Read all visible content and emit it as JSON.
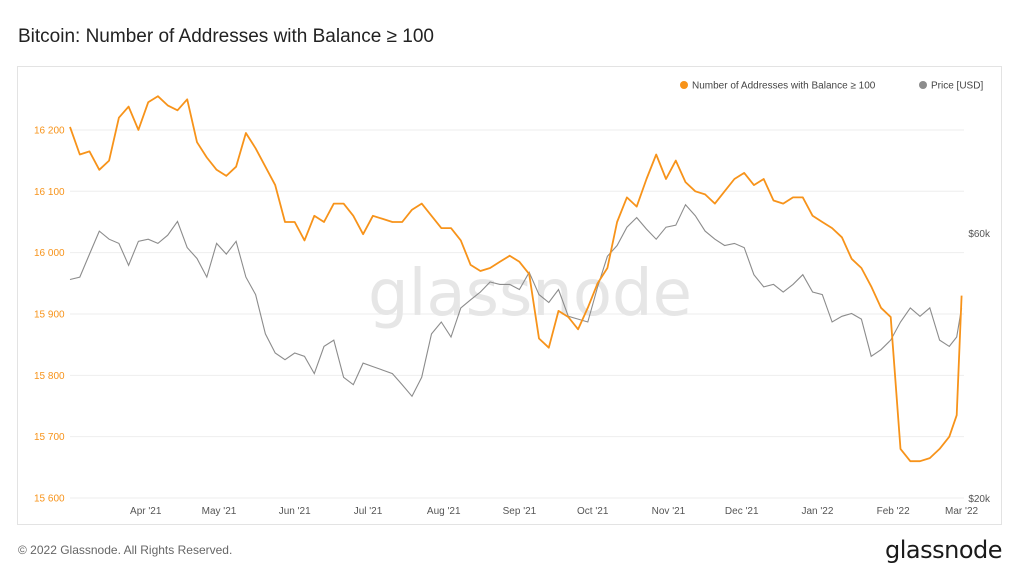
{
  "title": "Bitcoin: Number of Addresses with Balance ≥ 100",
  "watermark": "glassnode",
  "footer": {
    "copyright": "© 2022 Glassnode. All Rights Reserved.",
    "logo": "glassnode"
  },
  "colors": {
    "addresses": "#f7931a",
    "price": "#8c8c8c",
    "grid": "#eeeeee",
    "watermark": "#e6e6e6"
  },
  "chart_data": {
    "type": "line",
    "title": "Bitcoin: Number of Addresses with Balance ≥ 100",
    "x_ticks": [
      "Apr '21",
      "May '21",
      "Jun '21",
      "Jul '21",
      "Aug '21",
      "Sep '21",
      "Oct '21",
      "Nov '21",
      "Dec '21",
      "Jan '22",
      "Feb '22",
      "Mar '22"
    ],
    "y_left": {
      "range": [
        15600,
        16270
      ],
      "ticks": [
        15600,
        15700,
        15800,
        15900,
        16000,
        16100,
        16200
      ],
      "tick_labels": [
        "15 600",
        "15 700",
        "15 800",
        "15 900",
        "16 000",
        "16 100",
        "16 200"
      ]
    },
    "y_right": {
      "scale": "log",
      "range_usd": [
        20000,
        110000
      ],
      "ticks": [
        20000,
        60000
      ],
      "tick_labels": [
        "$20k",
        "$60k"
      ]
    },
    "legend": {
      "placement": "top-right",
      "items": [
        "Number of Addresses with Balance ≥ 100",
        "Price [USD]"
      ]
    },
    "series": [
      {
        "name": "Number of Addresses with Balance ≥ 100",
        "axis": "left",
        "points": [
          [
            "2021-03-01",
            16205
          ],
          [
            "2021-03-05",
            16160
          ],
          [
            "2021-03-09",
            16165
          ],
          [
            "2021-03-13",
            16135
          ],
          [
            "2021-03-17",
            16150
          ],
          [
            "2021-03-21",
            16220
          ],
          [
            "2021-03-25",
            16238
          ],
          [
            "2021-03-29",
            16200
          ],
          [
            "2021-04-02",
            16245
          ],
          [
            "2021-04-06",
            16255
          ],
          [
            "2021-04-10",
            16240
          ],
          [
            "2021-04-14",
            16232
          ],
          [
            "2021-04-18",
            16250
          ],
          [
            "2021-04-22",
            16180
          ],
          [
            "2021-04-26",
            16155
          ],
          [
            "2021-04-30",
            16135
          ],
          [
            "2021-05-04",
            16125
          ],
          [
            "2021-05-08",
            16140
          ],
          [
            "2021-05-12",
            16195
          ],
          [
            "2021-05-16",
            16170
          ],
          [
            "2021-05-20",
            16140
          ],
          [
            "2021-05-24",
            16110
          ],
          [
            "2021-05-28",
            16050
          ],
          [
            "2021-06-01",
            16050
          ],
          [
            "2021-06-05",
            16020
          ],
          [
            "2021-06-09",
            16060
          ],
          [
            "2021-06-13",
            16050
          ],
          [
            "2021-06-17",
            16080
          ],
          [
            "2021-06-21",
            16080
          ],
          [
            "2021-06-25",
            16060
          ],
          [
            "2021-06-29",
            16030
          ],
          [
            "2021-07-03",
            16060
          ],
          [
            "2021-07-07",
            16055
          ],
          [
            "2021-07-11",
            16050
          ],
          [
            "2021-07-15",
            16050
          ],
          [
            "2021-07-19",
            16070
          ],
          [
            "2021-07-23",
            16080
          ],
          [
            "2021-07-27",
            16060
          ],
          [
            "2021-07-31",
            16040
          ],
          [
            "2021-08-04",
            16040
          ],
          [
            "2021-08-08",
            16020
          ],
          [
            "2021-08-12",
            15980
          ],
          [
            "2021-08-16",
            15970
          ],
          [
            "2021-08-20",
            15975
          ],
          [
            "2021-08-24",
            15985
          ],
          [
            "2021-08-28",
            15995
          ],
          [
            "2021-09-01",
            15985
          ],
          [
            "2021-09-05",
            15965
          ],
          [
            "2021-09-09",
            15860
          ],
          [
            "2021-09-13",
            15845
          ],
          [
            "2021-09-17",
            15905
          ],
          [
            "2021-09-21",
            15895
          ],
          [
            "2021-09-25",
            15875
          ],
          [
            "2021-09-29",
            15910
          ],
          [
            "2021-10-03",
            15950
          ],
          [
            "2021-10-07",
            15975
          ],
          [
            "2021-10-11",
            16050
          ],
          [
            "2021-10-15",
            16090
          ],
          [
            "2021-10-19",
            16075
          ],
          [
            "2021-10-23",
            16120
          ],
          [
            "2021-10-27",
            16160
          ],
          [
            "2021-10-31",
            16120
          ],
          [
            "2021-11-04",
            16150
          ],
          [
            "2021-11-08",
            16115
          ],
          [
            "2021-11-12",
            16100
          ],
          [
            "2021-11-16",
            16095
          ],
          [
            "2021-11-20",
            16080
          ],
          [
            "2021-11-24",
            16100
          ],
          [
            "2021-11-28",
            16120
          ],
          [
            "2021-12-02",
            16130
          ],
          [
            "2021-12-06",
            16110
          ],
          [
            "2021-12-10",
            16120
          ],
          [
            "2021-12-14",
            16085
          ],
          [
            "2021-12-18",
            16080
          ],
          [
            "2021-12-22",
            16090
          ],
          [
            "2021-12-26",
            16090
          ],
          [
            "2021-12-30",
            16060
          ],
          [
            "2022-01-03",
            16050
          ],
          [
            "2022-01-07",
            16040
          ],
          [
            "2022-01-11",
            16025
          ],
          [
            "2022-01-15",
            15990
          ],
          [
            "2022-01-19",
            15975
          ],
          [
            "2022-01-23",
            15945
          ],
          [
            "2022-01-27",
            15910
          ],
          [
            "2022-01-31",
            15895
          ],
          [
            "2022-02-04",
            15680
          ],
          [
            "2022-02-08",
            15660
          ],
          [
            "2022-02-12",
            15660
          ],
          [
            "2022-02-16",
            15665
          ],
          [
            "2022-02-20",
            15680
          ],
          [
            "2022-02-24",
            15700
          ],
          [
            "2022-02-27",
            15735
          ],
          [
            "2022-03-01",
            15930
          ]
        ]
      },
      {
        "name": "Price [USD]",
        "axis": "right",
        "points": [
          [
            "2021-03-01",
            49500
          ],
          [
            "2021-03-05",
            50000
          ],
          [
            "2021-03-09",
            55000
          ],
          [
            "2021-03-13",
            60500
          ],
          [
            "2021-03-17",
            58500
          ],
          [
            "2021-03-21",
            57500
          ],
          [
            "2021-03-25",
            52500
          ],
          [
            "2021-03-29",
            58000
          ],
          [
            "2021-04-02",
            58500
          ],
          [
            "2021-04-06",
            57500
          ],
          [
            "2021-04-10",
            59500
          ],
          [
            "2021-04-14",
            63000
          ],
          [
            "2021-04-18",
            56500
          ],
          [
            "2021-04-22",
            54000
          ],
          [
            "2021-04-26",
            50000
          ],
          [
            "2021-04-30",
            57500
          ],
          [
            "2021-05-04",
            55000
          ],
          [
            "2021-05-08",
            58000
          ],
          [
            "2021-05-12",
            50000
          ],
          [
            "2021-05-16",
            46500
          ],
          [
            "2021-05-20",
            39500
          ],
          [
            "2021-05-24",
            36500
          ],
          [
            "2021-05-28",
            35500
          ],
          [
            "2021-06-01",
            36500
          ],
          [
            "2021-06-05",
            36000
          ],
          [
            "2021-06-09",
            33500
          ],
          [
            "2021-06-13",
            37500
          ],
          [
            "2021-06-17",
            38500
          ],
          [
            "2021-06-21",
            33000
          ],
          [
            "2021-06-25",
            32000
          ],
          [
            "2021-06-29",
            35000
          ],
          [
            "2021-07-03",
            34500
          ],
          [
            "2021-07-07",
            34000
          ],
          [
            "2021-07-11",
            33500
          ],
          [
            "2021-07-15",
            32000
          ],
          [
            "2021-07-19",
            30500
          ],
          [
            "2021-07-23",
            33000
          ],
          [
            "2021-07-27",
            39500
          ],
          [
            "2021-07-31",
            41500
          ],
          [
            "2021-08-04",
            39000
          ],
          [
            "2021-08-08",
            44000
          ],
          [
            "2021-08-12",
            45500
          ],
          [
            "2021-08-16",
            47000
          ],
          [
            "2021-08-20",
            49000
          ],
          [
            "2021-08-24",
            48500
          ],
          [
            "2021-08-28",
            48500
          ],
          [
            "2021-09-01",
            47500
          ],
          [
            "2021-09-05",
            51000
          ],
          [
            "2021-09-09",
            46500
          ],
          [
            "2021-09-13",
            45000
          ],
          [
            "2021-09-17",
            47500
          ],
          [
            "2021-09-21",
            42500
          ],
          [
            "2021-09-25",
            42000
          ],
          [
            "2021-09-29",
            41500
          ],
          [
            "2021-10-03",
            48000
          ],
          [
            "2021-10-07",
            54500
          ],
          [
            "2021-10-11",
            57000
          ],
          [
            "2021-10-15",
            61500
          ],
          [
            "2021-10-19",
            64000
          ],
          [
            "2021-10-23",
            61000
          ],
          [
            "2021-10-27",
            58500
          ],
          [
            "2021-10-31",
            61500
          ],
          [
            "2021-11-04",
            62000
          ],
          [
            "2021-11-08",
            67500
          ],
          [
            "2021-11-12",
            64500
          ],
          [
            "2021-11-16",
            60500
          ],
          [
            "2021-11-20",
            58500
          ],
          [
            "2021-11-24",
            57000
          ],
          [
            "2021-11-28",
            57500
          ],
          [
            "2021-12-02",
            56500
          ],
          [
            "2021-12-06",
            50500
          ],
          [
            "2021-12-10",
            48000
          ],
          [
            "2021-12-14",
            48500
          ],
          [
            "2021-12-18",
            47000
          ],
          [
            "2021-12-22",
            48500
          ],
          [
            "2021-12-26",
            50500
          ],
          [
            "2021-12-30",
            47000
          ],
          [
            "2022-01-03",
            46500
          ],
          [
            "2022-01-07",
            41500
          ],
          [
            "2022-01-11",
            42500
          ],
          [
            "2022-01-15",
            43000
          ],
          [
            "2022-01-19",
            42000
          ],
          [
            "2022-01-23",
            36000
          ],
          [
            "2022-01-27",
            37000
          ],
          [
            "2022-01-31",
            38500
          ],
          [
            "2022-02-04",
            41500
          ],
          [
            "2022-02-08",
            44000
          ],
          [
            "2022-02-12",
            42500
          ],
          [
            "2022-02-16",
            44000
          ],
          [
            "2022-02-20",
            38500
          ],
          [
            "2022-02-24",
            37500
          ],
          [
            "2022-02-27",
            39000
          ],
          [
            "2022-03-01",
            44000
          ]
        ]
      }
    ]
  }
}
